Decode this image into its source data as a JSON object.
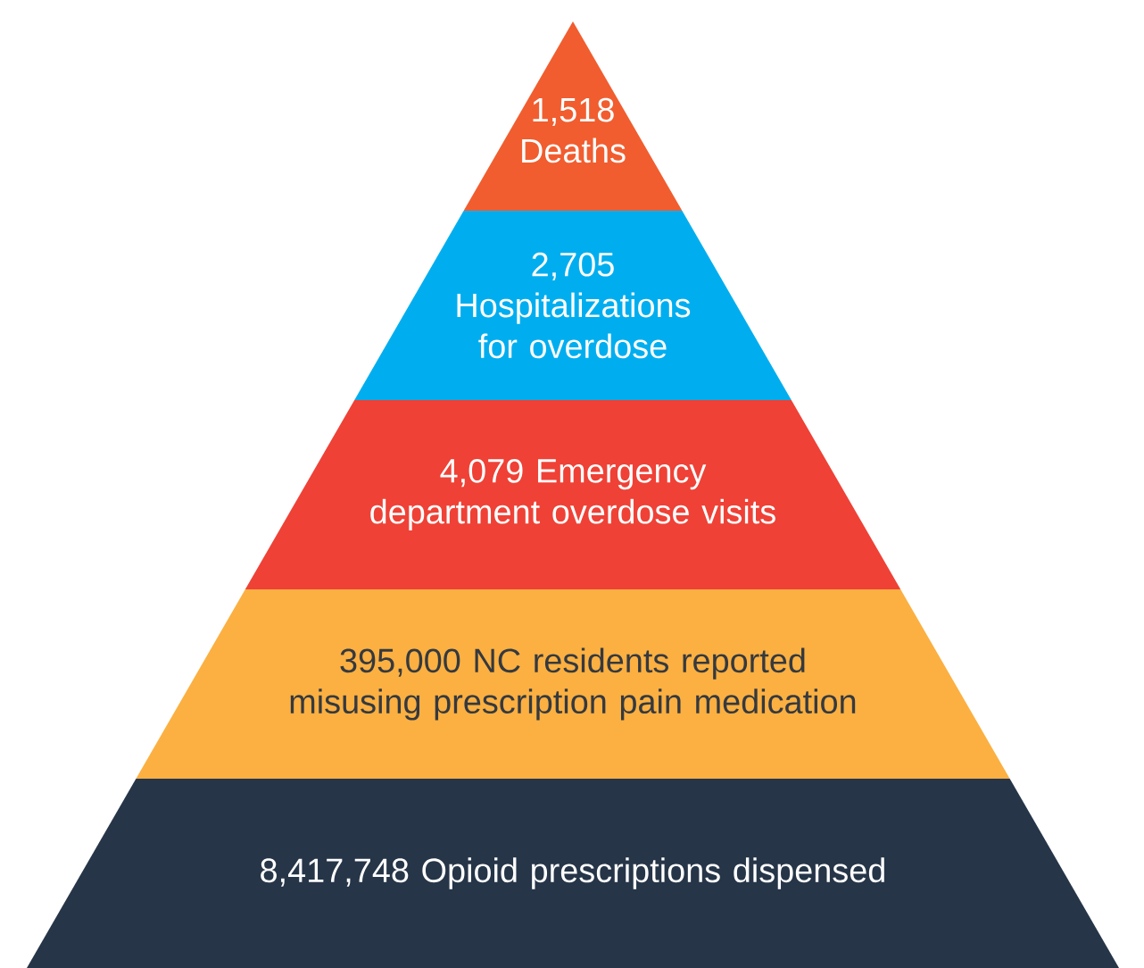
{
  "chart_data": {
    "type": "other",
    "categories": [
      "Deaths",
      "Hospitalizations for overdose",
      "Emergency department overdose visits",
      "NC residents reported misusing prescription pain medication",
      "Opioid prescriptions dispensed"
    ],
    "values": [
      1518,
      2705,
      4079,
      395000,
      8417748
    ],
    "value_labels": [
      "1,518",
      "2,705",
      "4,079",
      "395,000",
      "8,417,748"
    ],
    "colors": [
      "#f15d2f",
      "#00aeef",
      "#ef4136",
      "#fbb041",
      "#263548"
    ]
  }
}
